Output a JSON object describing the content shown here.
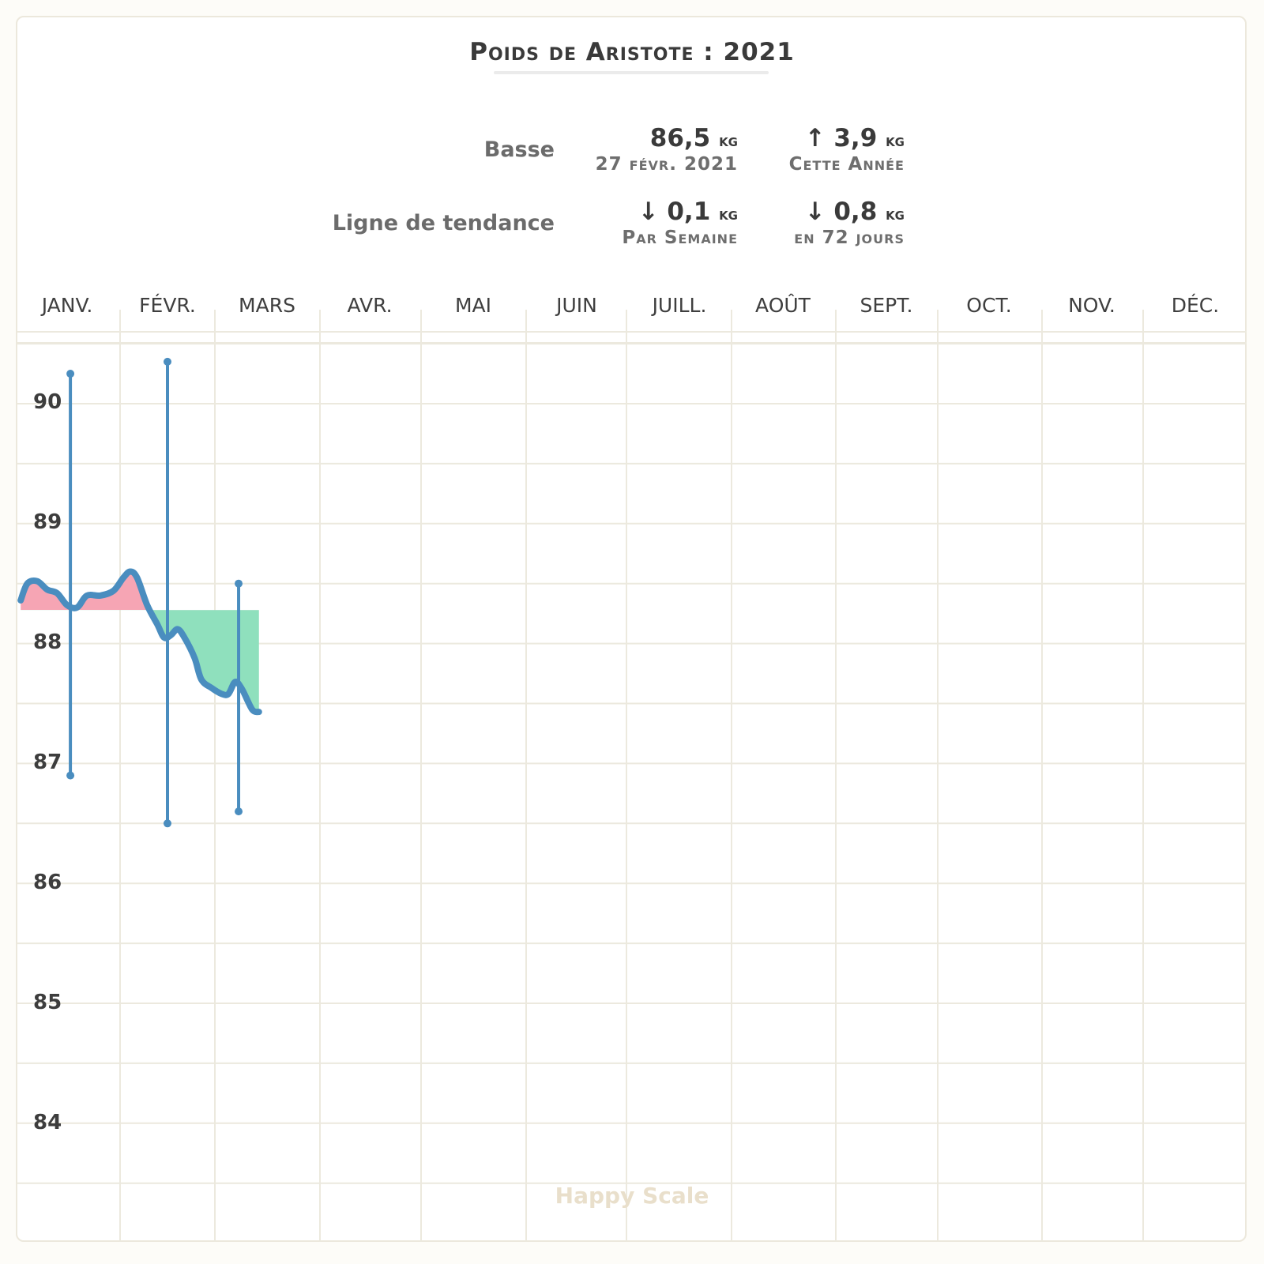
{
  "header": {
    "title": "Poids de Aristote : 2021"
  },
  "stats": {
    "low": {
      "label": "Basse",
      "value": "86,5",
      "value_unit": "kg",
      "value_sub": "27 févr. 2021",
      "change": "↑ 3,9",
      "change_unit": "kg",
      "change_sub": "Cette Année"
    },
    "trend": {
      "label": "Ligne de tendance",
      "value": "↓ 0,1",
      "value_unit": "kg",
      "value_sub": "Par Semaine",
      "change": "↓ 0,8",
      "change_unit": "kg",
      "change_sub": "en 72 jours"
    }
  },
  "brand": "Happy Scale",
  "colors": {
    "line": "#4a8dbf",
    "gain_fill": "#f6a5b4",
    "loss_fill": "#8fe0bd",
    "grid": "#ece9de"
  },
  "chart_data": {
    "type": "line",
    "x_categories": [
      "JANV.",
      "FÉVR.",
      "MARS",
      "AVR.",
      "MAI",
      "JUIN",
      "JUILL.",
      "AOÛT",
      "SEPT.",
      "OCT.",
      "NOV.",
      "DÉC."
    ],
    "y_ticks": [
      90,
      89,
      88,
      87,
      86,
      85,
      84
    ],
    "ylim": [
      83.5,
      90.5
    ],
    "grid": true,
    "baseline": 88.28,
    "trend_line": {
      "x_day": [
        1,
        3,
        6,
        9,
        12,
        15,
        18,
        21,
        25,
        29,
        32,
        34,
        36,
        39,
        42,
        44,
        46,
        48,
        50,
        53,
        55,
        58,
        61,
        63,
        65,
        67,
        70,
        72
      ],
      "y": [
        88.36,
        88.5,
        88.52,
        88.45,
        88.42,
        88.32,
        88.3,
        88.4,
        88.4,
        88.44,
        88.55,
        88.6,
        88.55,
        88.32,
        88.16,
        88.05,
        88.07,
        88.12,
        88.05,
        87.88,
        87.7,
        87.63,
        87.58,
        87.58,
        87.68,
        87.62,
        87.45,
        87.43
      ]
    },
    "monthly_ranges": [
      {
        "month": "JANV.",
        "x_day": 16,
        "min": 86.9,
        "max": 90.25
      },
      {
        "month": "FÉVR.",
        "x_day": 45,
        "min": 86.5,
        "max": 90.35
      },
      {
        "month": "MARS",
        "x_day": 66,
        "min": 86.6,
        "max": 88.5
      }
    ]
  }
}
